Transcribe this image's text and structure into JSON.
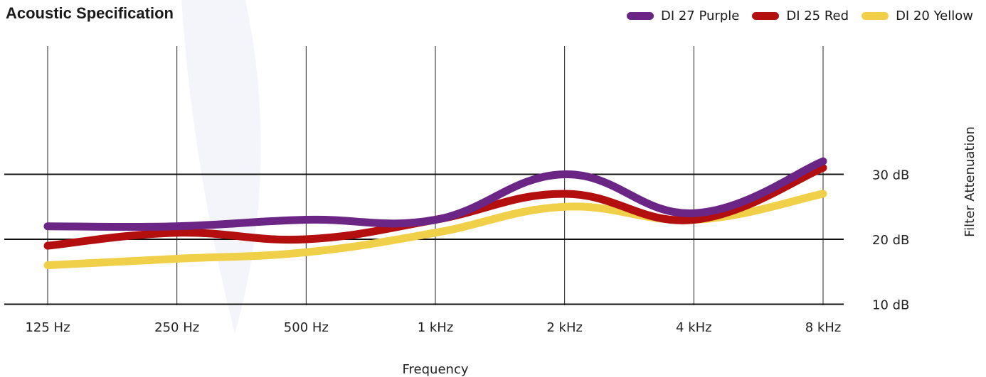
{
  "chart_data": {
    "type": "line",
    "title": "Acoustic Specification",
    "xlabel": "Frequency",
    "ylabel": "Filter Attenuation",
    "categories": [
      "125 Hz",
      "250 Hz",
      "500 Hz",
      "1 kHz",
      "2 kHz",
      "4 kHz",
      "8 kHz"
    ],
    "y_ticks": [
      {
        "value": 10,
        "label": "10 dB"
      },
      {
        "value": 20,
        "label": "20 dB"
      },
      {
        "value": 30,
        "label": "30 dB"
      }
    ],
    "ylim": [
      0,
      40
    ],
    "grid": {
      "horizontal": true,
      "vertical": true
    },
    "legend_position": "top-right",
    "series": [
      {
        "name": "DI 27 Purple",
        "color": "#6a2585",
        "values": [
          22,
          22,
          23,
          23,
          30,
          24,
          32
        ]
      },
      {
        "name": "DI 25 Red",
        "color": "#b30f0f",
        "values": [
          19,
          21,
          20,
          23,
          27,
          23,
          31
        ]
      },
      {
        "name": "DI 20 Yellow",
        "color": "#f0d048",
        "values": [
          16,
          17,
          18,
          21,
          25,
          23,
          27
        ]
      }
    ]
  }
}
